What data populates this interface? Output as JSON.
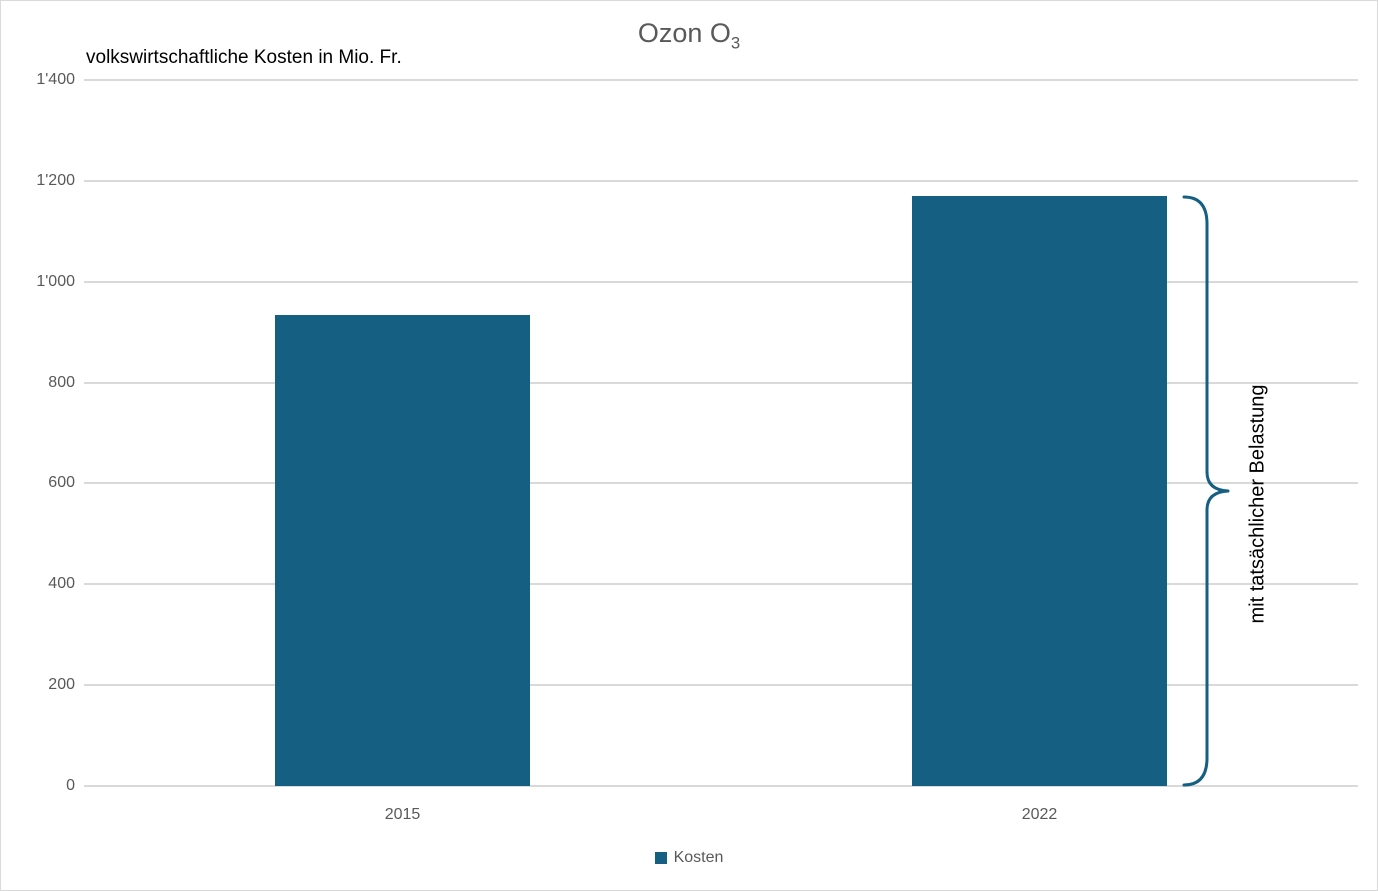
{
  "chart": {
    "title": {
      "text": "Ozon O",
      "subscript": "3"
    },
    "subtitle": "volkswirtschaftliche Kosten in Mio. Fr.",
    "legend": {
      "label": "Kosten",
      "swatch_color": "#156082"
    },
    "annotation": {
      "label": "mit tatsächlicher Belastung"
    },
    "colors": {
      "bar": "#156082",
      "brace": "#156082",
      "gridline": "#d9d9d9",
      "axis_text": "#595959",
      "subtitle_text": "#000000",
      "frame_border": "#d9d9d9"
    }
  },
  "chart_data": {
    "type": "bar",
    "title": "Ozon O3",
    "subtitle": "volkswirtschaftliche Kosten in Mio. Fr.",
    "categories": [
      "2015",
      "2022"
    ],
    "series": [
      {
        "name": "Kosten",
        "values": [
          935,
          1170
        ]
      }
    ],
    "ylim": [
      0,
      1400
    ],
    "ytick_interval": 200,
    "ytick_labels": [
      "1'400",
      "1'200",
      "1'000",
      "800",
      "600",
      "400",
      "200",
      "0"
    ],
    "grid": true,
    "legend_position": "bottom",
    "bar_color": "#156082",
    "annotation": {
      "text": "mit tatsächlicher Belastung",
      "shape": "right-curly-brace",
      "spans": "full height of 2022 bar (0 to 1170)"
    }
  }
}
